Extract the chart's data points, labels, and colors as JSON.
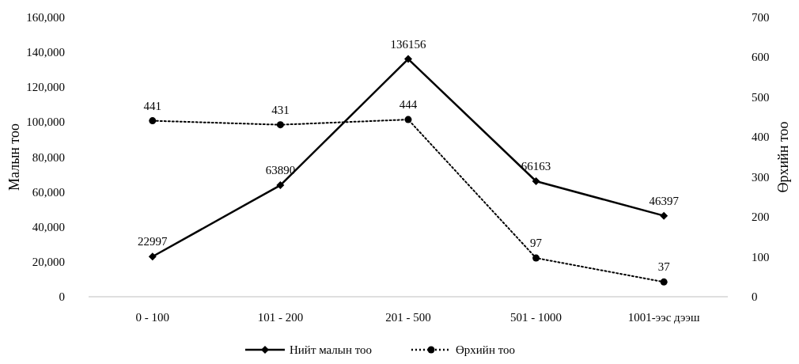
{
  "chart_data": {
    "type": "line",
    "ylabel": "Малын тоо",
    "y2label": "Өрхийн тоо",
    "categories": [
      "0 - 100",
      "101 - 200",
      "201 - 500",
      "501 - 1000",
      "1001-ээс дээш"
    ],
    "series": [
      {
        "name": "Нийт малын тоо",
        "color": "#000000",
        "values": [
          22997,
          63890,
          136156,
          66163,
          46397
        ],
        "marker": "diamond",
        "line_style": "solid"
      },
      {
        "name": "Өрхийн тоо",
        "color": "#000000",
        "values": [
          441,
          431,
          444,
          97,
          37
        ],
        "axis": "y2",
        "marker": "circle",
        "line_style": "dotted"
      }
    ],
    "ylim": [
      0,
      160000
    ],
    "yticks": [
      {
        "value": 0,
        "label": "0"
      },
      {
        "value": 20000,
        "label": "20,000"
      },
      {
        "value": 40000,
        "label": "40,000"
      },
      {
        "value": 60000,
        "label": "60,000"
      },
      {
        "value": 80000,
        "label": "80,000"
      },
      {
        "value": 100000,
        "label": "100,000"
      },
      {
        "value": 120000,
        "label": "120,000"
      },
      {
        "value": 140000,
        "label": "140,000"
      },
      {
        "value": 160000,
        "label": "160,000"
      }
    ],
    "y2lim": [
      0,
      700
    ],
    "y2ticks": [
      0,
      100,
      200,
      300,
      400,
      500,
      600,
      700
    ],
    "data_labels": true,
    "legend": "bottom",
    "grid": false
  }
}
